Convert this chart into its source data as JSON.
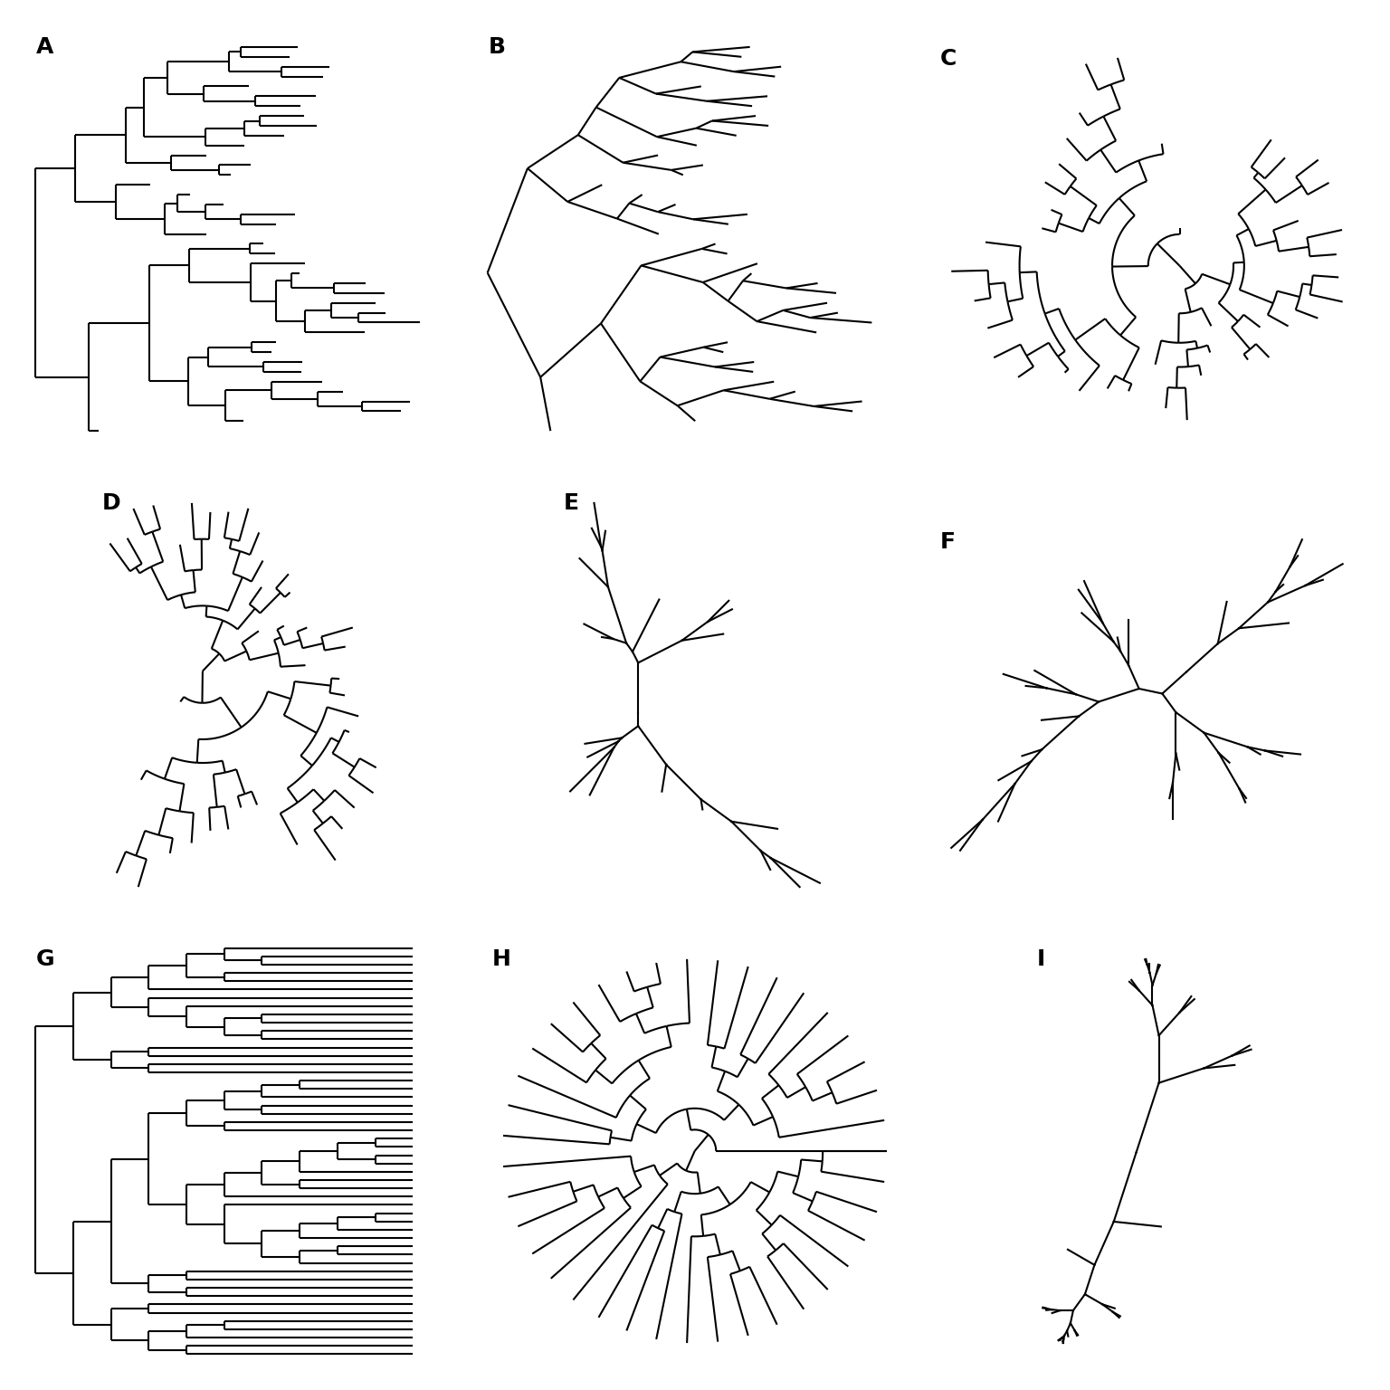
{
  "background": "#ffffff",
  "line_color": "#000000",
  "line_width": 1.5,
  "label_fontsize": 18,
  "label_fontweight": "bold",
  "labels": [
    "A",
    "B",
    "C",
    "D",
    "E",
    "F",
    "G",
    "H",
    "I"
  ]
}
